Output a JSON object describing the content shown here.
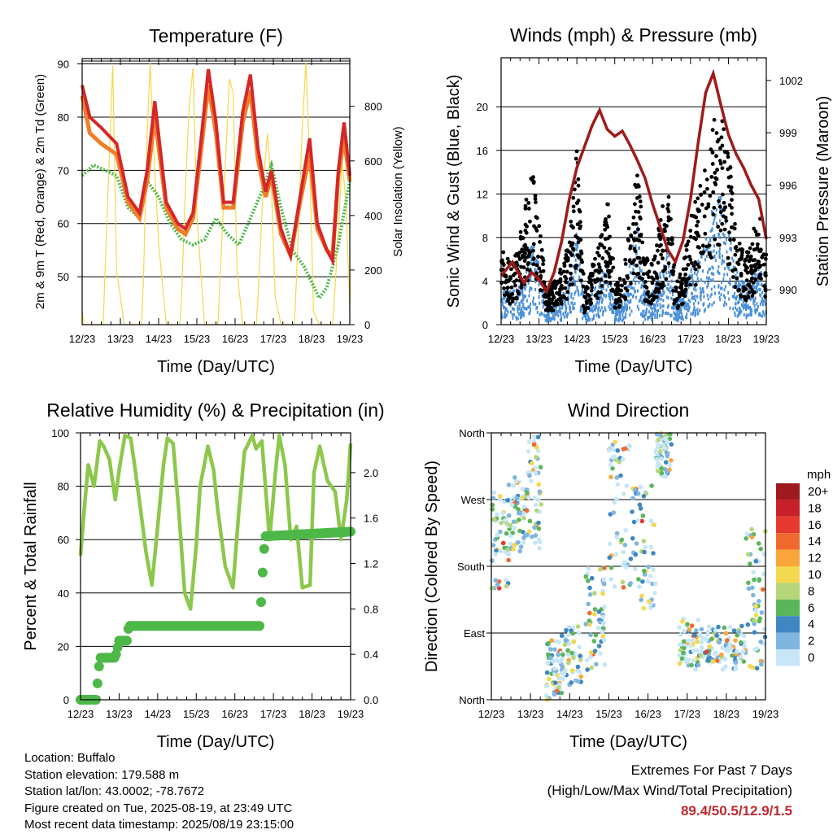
{
  "x_tick_labels": [
    "12/23",
    "13/23",
    "14/23",
    "15/23",
    "16/23",
    "17/23",
    "18/23",
    "19/23"
  ],
  "chart_data": [
    {
      "type": "line",
      "title": "Temperature (F)",
      "xlabel": "Time (Day/UTC)",
      "ylabel": "2m & 9m T (Red, Orange) & 2m Td (Green)",
      "y2label": "Solar Insolation (Yellow)",
      "x_range_days": [
        12,
        19
      ],
      "ylim": [
        41,
        91
      ],
      "y_ticks": [
        50,
        60,
        70,
        80,
        90
      ],
      "y2lim": [
        0,
        975
      ],
      "y2_ticks": [
        0,
        200,
        400,
        600,
        800
      ],
      "grid": true,
      "colors": {
        "t2m": "#d62728",
        "t9m": "#f07f2a",
        "td": "#4db848",
        "solar": "#f5d84a"
      },
      "series": [
        {
          "key": "t2m",
          "x": [
            12.0,
            12.2,
            12.5,
            12.9,
            13.2,
            13.5,
            13.7,
            13.9,
            14.2,
            14.5,
            14.7,
            14.9,
            15.1,
            15.3,
            15.5,
            15.7,
            15.95,
            16.2,
            16.4,
            16.6,
            16.8,
            16.95,
            17.2,
            17.45,
            17.7,
            17.95,
            18.15,
            18.4,
            18.55,
            18.7,
            18.85,
            19.0
          ],
          "y": [
            86,
            80,
            78,
            75,
            65,
            62,
            70,
            83,
            64,
            60,
            59,
            62,
            75,
            89,
            79,
            64,
            64,
            81,
            88,
            74,
            66,
            70,
            59,
            54,
            65,
            76,
            60,
            55,
            53,
            70,
            79,
            69
          ]
        },
        {
          "key": "t9m",
          "x": [
            12.0,
            12.2,
            12.5,
            12.9,
            13.2,
            13.5,
            13.7,
            13.9,
            14.2,
            14.5,
            14.7,
            14.9,
            15.1,
            15.3,
            15.5,
            15.7,
            15.95,
            16.2,
            16.4,
            16.6,
            16.8,
            16.95,
            17.2,
            17.45,
            17.7,
            17.95,
            18.15,
            18.4,
            18.55,
            18.7,
            18.85,
            19.0
          ],
          "y": [
            84,
            77,
            75,
            73,
            64,
            61,
            68,
            80,
            63,
            59,
            58,
            61,
            73,
            86,
            77,
            63,
            63,
            79,
            85,
            72,
            65,
            69,
            58,
            54,
            64,
            73,
            59,
            55,
            54,
            69,
            76,
            68
          ]
        },
        {
          "key": "td",
          "x": [
            12.0,
            12.3,
            12.6,
            12.9,
            13.2,
            13.5,
            13.7,
            14.0,
            14.3,
            14.6,
            14.9,
            15.2,
            15.5,
            15.8,
            16.1,
            16.4,
            16.7,
            16.95,
            17.2,
            17.5,
            17.8,
            18.0,
            18.2,
            18.4,
            18.7,
            19.0
          ],
          "y": [
            69,
            71,
            70,
            69,
            63,
            61,
            68,
            65,
            60,
            57,
            56,
            57,
            61,
            58,
            56,
            61,
            66,
            71,
            63,
            55,
            52,
            49,
            46,
            48,
            56,
            68
          ]
        },
        {
          "key": "solar",
          "x": [
            12.0,
            12.05,
            12.12,
            12.2,
            12.3,
            12.45,
            12.55,
            12.6,
            12.72,
            12.8,
            12.9,
            13.1,
            13.2,
            13.3,
            13.55,
            13.6,
            13.7,
            13.78,
            13.85,
            14.0,
            14.2,
            14.3,
            14.55,
            14.6,
            14.7,
            14.8,
            14.9,
            15.0,
            15.2,
            15.3,
            15.55,
            15.6,
            15.75,
            15.85,
            15.95,
            16.05,
            16.2,
            16.3,
            16.55,
            16.6,
            16.75,
            16.85,
            16.95,
            17.05,
            17.2,
            17.3,
            17.55,
            17.6,
            17.75,
            17.85,
            17.95,
            18.05,
            18.2,
            18.3,
            18.55,
            18.6,
            18.72,
            18.8,
            18.9,
            19.0
          ],
          "y": [
            50,
            0,
            0,
            0,
            0,
            0,
            0,
            200,
            650,
            950,
            200,
            0,
            0,
            0,
            0,
            150,
            700,
            960,
            700,
            300,
            0,
            0,
            0,
            100,
            500,
            800,
            940,
            400,
            0,
            0,
            0,
            150,
            600,
            900,
            850,
            200,
            0,
            0,
            0,
            100,
            550,
            700,
            500,
            100,
            0,
            0,
            0,
            150,
            700,
            960,
            600,
            50,
            0,
            0,
            0,
            100,
            400,
            600,
            450,
            50
          ]
        }
      ]
    },
    {
      "type": "scatter",
      "title": "Winds (mph) & Pressure (mb)",
      "xlabel": "Time (Day/UTC)",
      "ylabel": "Sonic Wind & Gust (Blue, Black)",
      "y2label": "Station Pressure (Maroon)",
      "x_range_days": [
        12,
        19
      ],
      "ylim": [
        0,
        24.5
      ],
      "y_ticks": [
        0,
        4,
        8,
        12,
        16,
        20
      ],
      "y2lim": [
        988.0,
        1003.3
      ],
      "y2_ticks": [
        990,
        993,
        996,
        999,
        1002
      ],
      "grid": true,
      "colors": {
        "wind": "#4a90d9",
        "gust": "#000000",
        "pressure": "#a01a1a"
      },
      "wind_envelope": {
        "x": [
          12.0,
          12.3,
          12.6,
          12.8,
          13.0,
          13.2,
          13.5,
          13.8,
          14.0,
          14.2,
          14.4,
          14.6,
          14.8,
          15.0,
          15.2,
          15.4,
          15.6,
          15.8,
          16.0,
          16.2,
          16.4,
          16.6,
          16.8,
          17.0,
          17.2,
          17.4,
          17.6,
          17.8,
          18.0,
          18.2,
          18.4,
          18.6,
          18.8,
          19.0
        ],
        "y": [
          4,
          3,
          4,
          8,
          6,
          2,
          2,
          4,
          9,
          2,
          3,
          4,
          6,
          2,
          2,
          6,
          9,
          3,
          3,
          5,
          7,
          2,
          3,
          5,
          6,
          8,
          11,
          12,
          9,
          5,
          4,
          4,
          6,
          4
        ]
      },
      "gust_envelope": {
        "x": [
          12.0,
          12.3,
          12.6,
          12.8,
          13.0,
          13.2,
          13.5,
          13.8,
          14.0,
          14.2,
          14.4,
          14.6,
          14.8,
          15.0,
          15.2,
          15.4,
          15.6,
          15.8,
          16.0,
          16.2,
          16.4,
          16.6,
          16.8,
          17.0,
          17.2,
          17.4,
          17.6,
          17.8,
          18.0,
          18.2,
          18.4,
          18.6,
          18.8,
          19.0
        ],
        "y": [
          7,
          5,
          9,
          14,
          9,
          3,
          4,
          7,
          15,
          3,
          5,
          7,
          11,
          4,
          4,
          9,
          13,
          6,
          5,
          9,
          12,
          4,
          5,
          9,
          11,
          15,
          17,
          18,
          15,
          8,
          6,
          7,
          10,
          6
        ]
      },
      "series": [
        {
          "key": "pressure",
          "x": [
            12.0,
            12.3,
            12.6,
            12.8,
            13.0,
            13.2,
            13.4,
            13.6,
            13.8,
            14.0,
            14.2,
            14.4,
            14.6,
            14.8,
            15.0,
            15.2,
            15.4,
            15.6,
            15.8,
            16.0,
            16.2,
            16.4,
            16.6,
            16.8,
            17.0,
            17.2,
            17.4,
            17.6,
            17.8,
            18.0,
            18.2,
            18.4,
            18.6,
            18.8,
            19.0
          ],
          "y": [
            990.8,
            991.6,
            990.4,
            991.0,
            990.6,
            989.9,
            991.0,
            992.8,
            995.2,
            997.0,
            998.2,
            999.4,
            1000.3,
            999.2,
            998.8,
            999.1,
            998.3,
            997.4,
            996.4,
            994.9,
            993.6,
            992.3,
            991.6,
            992.8,
            995.2,
            998.4,
            1001.3,
            1002.4,
            1000.6,
            998.9,
            997.8,
            997.0,
            996.0,
            995.2,
            992.9
          ]
        }
      ]
    },
    {
      "type": "line",
      "title": "Relative Humidity (%) & Precipitation (in)",
      "xlabel": "Time (Day/UTC)",
      "ylabel": "Percent & Total Rainfall",
      "x_range_days": [
        12,
        19
      ],
      "ylim": [
        0,
        100
      ],
      "y_ticks": [
        0,
        20,
        40,
        60,
        80,
        100
      ],
      "y2lim": [
        0,
        2.35
      ],
      "y2_ticks": [
        0.0,
        0.4,
        0.8,
        1.2,
        1.6,
        2.0
      ],
      "grid": true,
      "colors": {
        "rh": "#8cc84b",
        "precip": "#4db848"
      },
      "series": [
        {
          "key": "rh",
          "x": [
            12.0,
            12.1,
            12.2,
            12.35,
            12.5,
            12.6,
            12.75,
            12.9,
            13.0,
            13.15,
            13.3,
            13.4,
            13.55,
            13.7,
            13.85,
            14.0,
            14.15,
            14.25,
            14.4,
            14.55,
            14.7,
            14.85,
            15.0,
            15.1,
            15.3,
            15.45,
            15.55,
            15.75,
            15.95,
            16.1,
            16.25,
            16.45,
            16.55,
            16.7,
            16.9,
            17.05,
            17.15,
            17.3,
            17.45,
            17.6,
            17.75,
            17.95,
            18.05,
            18.2,
            18.4,
            18.6,
            18.75,
            18.9,
            19.0
          ],
          "y": [
            54,
            72,
            88,
            80,
            97,
            95,
            90,
            75,
            86,
            99,
            98,
            88,
            72,
            55,
            43,
            65,
            88,
            98,
            96,
            70,
            40,
            34,
            58,
            80,
            95,
            86,
            72,
            50,
            42,
            70,
            93,
            99,
            94,
            97,
            60,
            85,
            99,
            88,
            60,
            65,
            42,
            43,
            85,
            95,
            82,
            78,
            60,
            75,
            96
          ]
        },
        {
          "key": "precip",
          "x": [
            12.0,
            12.4,
            12.45,
            12.5,
            12.9,
            13.0,
            13.2,
            13.25,
            16.65,
            16.7,
            16.75,
            16.8,
            19.0
          ],
          "y": [
            0.0,
            0.0,
            0.18,
            0.37,
            0.37,
            0.52,
            0.52,
            0.65,
            0.65,
            1.0,
            1.3,
            1.44,
            1.48
          ]
        }
      ]
    },
    {
      "type": "scatter",
      "title": "Wind Direction",
      "xlabel": "Time (Day/UTC)",
      "ylabel": "Direction (Colored By Speed)",
      "x_range_days": [
        12,
        19
      ],
      "y_tick_labels": [
        "North",
        "East",
        "South",
        "West",
        "North"
      ],
      "y_tick_degrees": [
        0,
        90,
        180,
        270,
        360
      ],
      "grid": true,
      "colorbar": {
        "title": "mph",
        "labels": [
          "20+",
          "18",
          "16",
          "14",
          "12",
          "10",
          "8",
          "6",
          "4",
          "2",
          "0"
        ],
        "colors": [
          "#9e1a1f",
          "#c8202a",
          "#e8392e",
          "#f06a2f",
          "#f8a63b",
          "#f4d84f",
          "#b5d77a",
          "#5bb65a",
          "#3f87c2",
          "#7fb6e0",
          "#c7e6f7"
        ]
      },
      "clusters": [
        {
          "x_range": [
            12.0,
            12.5
          ],
          "deg_range": [
            150,
            280
          ]
        },
        {
          "x_range": [
            12.4,
            12.9
          ],
          "deg_range": [
            200,
            300
          ]
        },
        {
          "x_range": [
            12.9,
            13.3
          ],
          "deg_range": [
            200,
            360
          ]
        },
        {
          "x_range": [
            13.4,
            13.8
          ],
          "deg_range": [
            0,
            80
          ]
        },
        {
          "x_range": [
            13.8,
            14.3
          ],
          "deg_range": [
            20,
            100
          ]
        },
        {
          "x_range": [
            14.4,
            14.9
          ],
          "deg_range": [
            40,
            180
          ]
        },
        {
          "x_range": [
            15.0,
            15.6
          ],
          "deg_range": [
            150,
            350
          ]
        },
        {
          "x_range": [
            15.6,
            16.2
          ],
          "deg_range": [
            120,
            290
          ]
        },
        {
          "x_range": [
            16.2,
            16.6
          ],
          "deg_range": [
            300,
            360
          ]
        },
        {
          "x_range": [
            16.8,
            17.3
          ],
          "deg_range": [
            40,
            110
          ]
        },
        {
          "x_range": [
            17.3,
            17.9
          ],
          "deg_range": [
            50,
            100
          ]
        },
        {
          "x_range": [
            17.9,
            18.5
          ],
          "deg_range": [
            40,
            100
          ]
        },
        {
          "x_range": [
            18.5,
            19.0
          ],
          "deg_range": [
            40,
            230
          ]
        }
      ]
    }
  ],
  "info": {
    "location": "Location: Buffalo",
    "elevation": "Station elevation: 179.588 m",
    "latlon": "Station lat/lon: 43.0002; -78.7672",
    "created": "Figure created on Tue, 2025-08-19, at 23:49 UTC",
    "recent": "Most recent data timestamp: 2025/08/19 23:15:00"
  },
  "extremes": {
    "heading": "Extremes For Past 7 Days",
    "subheading": "(High/Low/Max Wind/Total Precipitation)",
    "values": "89.4/50.5/12.9/1.5"
  }
}
